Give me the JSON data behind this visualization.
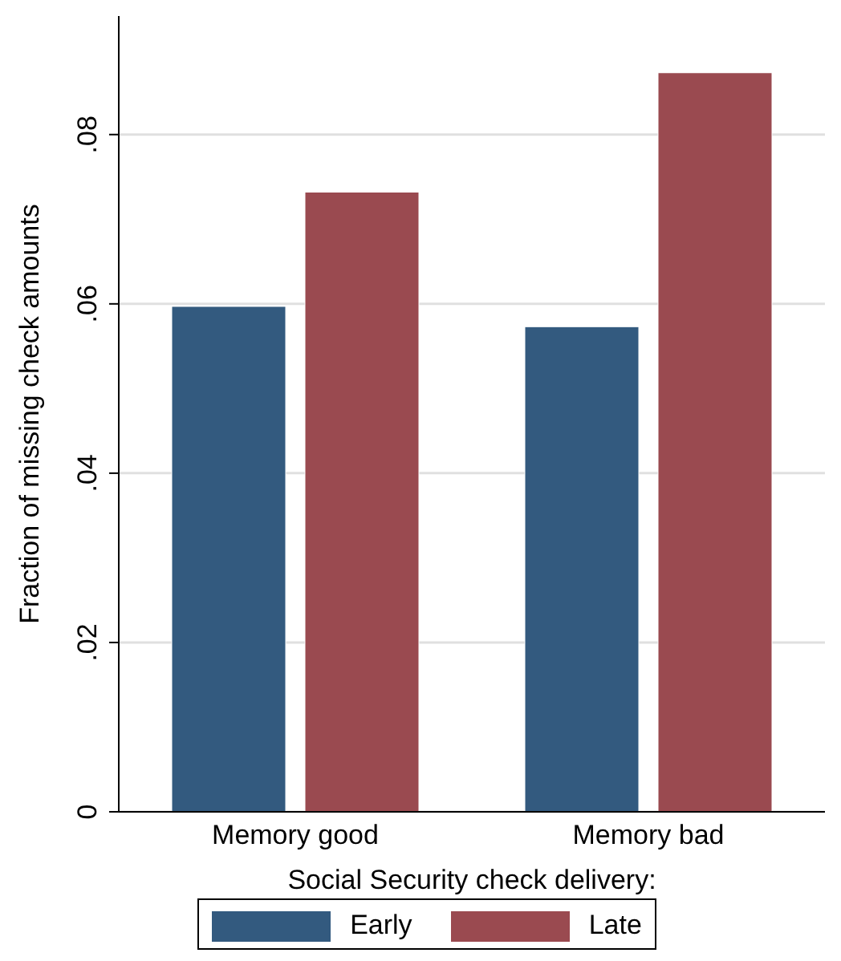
{
  "chart_data": {
    "type": "bar",
    "categories": [
      "Memory good",
      "Memory bad"
    ],
    "series": [
      {
        "name": "Early",
        "color": "#335a7f",
        "values": [
          0.0597,
          0.0573
        ]
      },
      {
        "name": "Late",
        "color": "#9a4a50",
        "values": [
          0.0732,
          0.0873
        ]
      }
    ],
    "xlabel": "Social Security check delivery:",
    "ylabel": "Fraction of missing check amounts",
    "ylim": [
      0,
      0.094
    ],
    "yticks": [
      0,
      {
        "value": 0.02,
        "label": ".02"
      },
      {
        "value": 0.04,
        "label": ".04"
      },
      {
        "value": 0.06,
        "label": ".06"
      },
      {
        "value": 0.08,
        "label": ".08"
      }
    ],
    "grid": "y",
    "legend": "bottom"
  }
}
